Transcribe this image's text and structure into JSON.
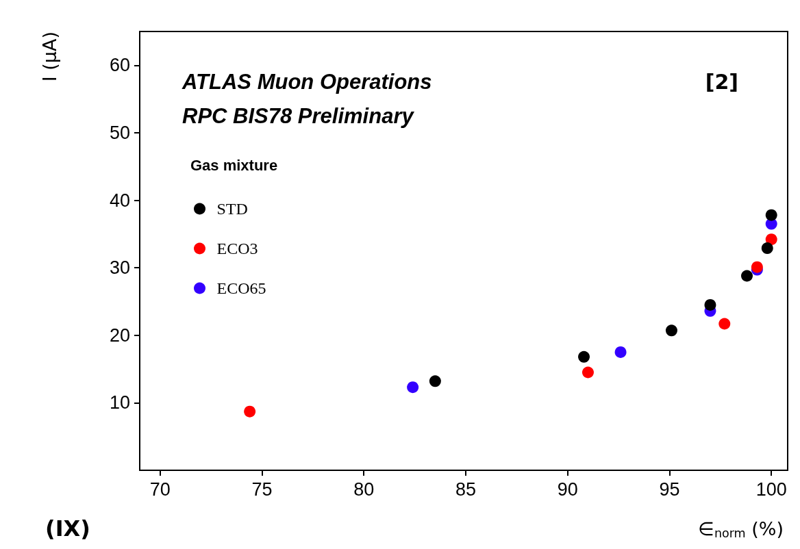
{
  "chart_data": {
    "type": "scatter",
    "xlabel": "∈$_{norm}$ (%)",
    "ylabel": "I (µA)",
    "legend_title": "Gas mixture",
    "annotations": [
      "ATLAS Muon Operations",
      "RPC BIS78 Preliminary",
      "[2]",
      "(IX)"
    ],
    "series": [
      {
        "name": "STD",
        "color": "#000000",
        "x": [
          83.5,
          90.8,
          95.1,
          97.0,
          98.8,
          99.8,
          100.0
        ],
        "values": [
          13.2,
          16.8,
          20.7,
          24.5,
          28.8,
          32.9,
          37.8
        ]
      },
      {
        "name": "ECO3",
        "color": "#ff0000",
        "x": [
          74.4,
          91.0,
          97.7,
          99.3,
          100.0
        ],
        "values": [
          8.7,
          14.5,
          21.7,
          30.1,
          34.2
        ]
      },
      {
        "name": "ECO65",
        "color": "#3300ff",
        "x": [
          82.4,
          92.6,
          97.0,
          99.3,
          100.0
        ],
        "values": [
          12.3,
          17.5,
          23.6,
          29.7,
          36.5
        ]
      }
    ],
    "xlim": [
      69,
      100.8
    ],
    "ylim": [
      0,
      65
    ],
    "xticks": [
      70,
      75,
      80,
      85,
      90,
      95,
      100
    ],
    "yticks": [
      10,
      20,
      30,
      40,
      50,
      60
    ],
    "marker": "circle",
    "legend": "top left",
    "grid": false
  }
}
